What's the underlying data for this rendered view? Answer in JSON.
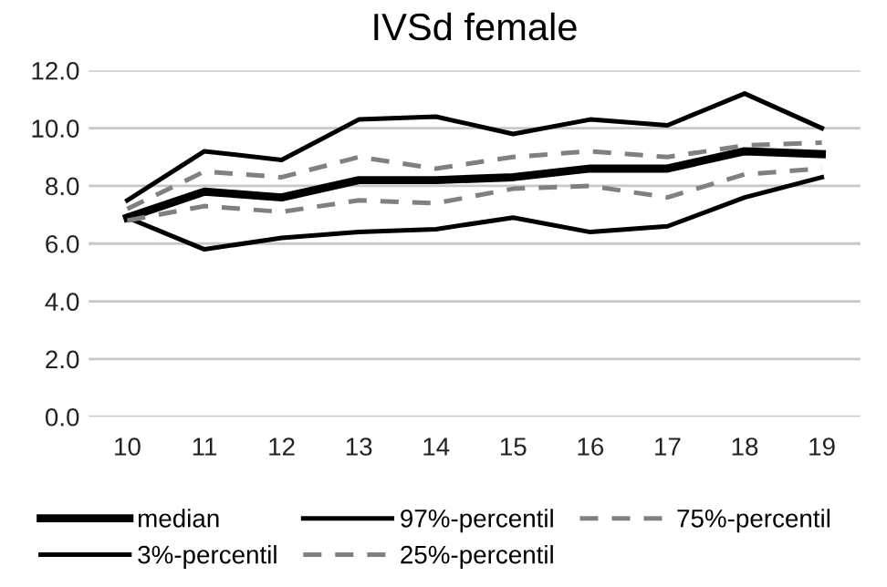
{
  "chart_data": {
    "type": "line",
    "title": "IVSd female",
    "categories": [
      "10",
      "11",
      "12",
      "13",
      "14",
      "15",
      "16",
      "17",
      "18",
      "19"
    ],
    "series": [
      {
        "name": "median",
        "color": "#000000",
        "line_style": "solid",
        "values": [
          6.9,
          7.8,
          7.6,
          8.2,
          8.2,
          8.3,
          8.6,
          8.6,
          9.2,
          9.1
        ]
      },
      {
        "name": "3%-percentil",
        "color": "#000000",
        "line_style": "solid",
        "values": [
          6.9,
          5.8,
          6.2,
          6.4,
          6.5,
          6.9,
          6.4,
          6.6,
          7.6,
          8.3
        ]
      },
      {
        "name": "97%-percentil",
        "color": "#000000",
        "line_style": "solid",
        "values": [
          7.5,
          9.2,
          8.9,
          10.3,
          10.4,
          9.8,
          10.3,
          10.1,
          11.2,
          10.0
        ]
      },
      {
        "name": "25%-percentil",
        "color": "#808080",
        "line_style": "dashed",
        "values": [
          6.8,
          7.3,
          7.1,
          7.5,
          7.4,
          7.9,
          8.0,
          7.6,
          8.4,
          8.6
        ]
      },
      {
        "name": "75%-percentil",
        "color": "#808080",
        "line_style": "dashed",
        "values": [
          7.2,
          8.5,
          8.3,
          9.0,
          8.6,
          9.0,
          9.2,
          9.0,
          9.4,
          9.5
        ]
      }
    ],
    "ylim": [
      0,
      12
    ],
    "yticks": [
      {
        "value": 0,
        "label": "0.0"
      },
      {
        "value": 2,
        "label": "2.0"
      },
      {
        "value": 4,
        "label": "4.0"
      },
      {
        "value": 6,
        "label": "6.0"
      },
      {
        "value": 8,
        "label": "8.0"
      },
      {
        "value": 10,
        "label": "10.0"
      },
      {
        "value": 12,
        "label": "12.0"
      }
    ],
    "grid": "y",
    "legend": "bottom",
    "marker": "none"
  }
}
